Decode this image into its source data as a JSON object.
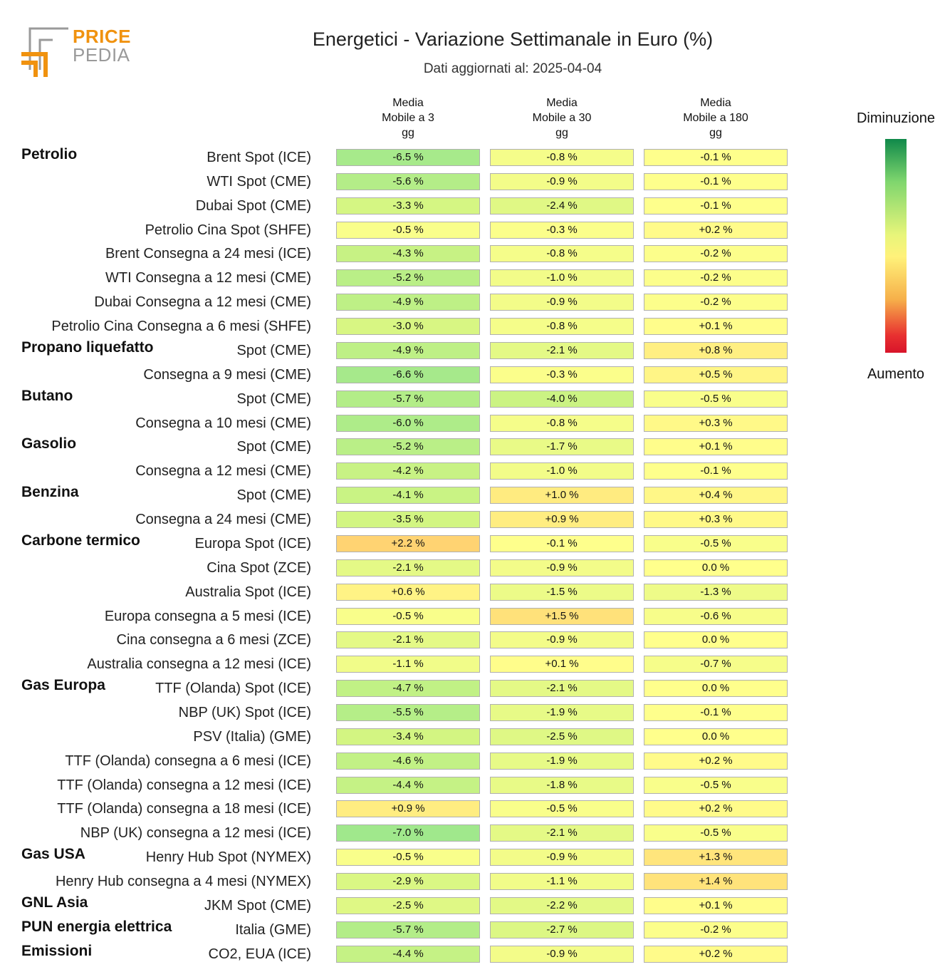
{
  "logo": {
    "line1": "PRICE",
    "line2": "PEDIA"
  },
  "chart_data": {
    "type": "heatmap",
    "title": "Energetici - Variazione Settimanale in Euro (%)",
    "subtitle": "Dati aggiornati al: 2025-04-04",
    "columns": [
      "Media\nMobile a 3\ngg",
      "Media\nMobile a 30\ngg",
      "Media\nMobile a 180\ngg"
    ],
    "legend": {
      "top": "Diminuzione",
      "bottom": "Aumento"
    },
    "rows": [
      {
        "group": "Petrolio",
        "label": "Brent Spot (ICE)",
        "values": [
          -6.5,
          -0.8,
          -0.1
        ],
        "display": [
          "-6.5 %",
          "-0.8 %",
          "-0.1 %"
        ]
      },
      {
        "group": "",
        "label": "WTI Spot (CME)",
        "values": [
          -5.6,
          -0.9,
          -0.1
        ],
        "display": [
          "-5.6 %",
          "-0.9 %",
          "-0.1 %"
        ]
      },
      {
        "group": "",
        "label": "Dubai Spot (CME)",
        "values": [
          -3.3,
          -2.4,
          -0.1
        ],
        "display": [
          "-3.3 %",
          "-2.4 %",
          "-0.1 %"
        ]
      },
      {
        "group": "",
        "label": "Petrolio Cina Spot (SHFE)",
        "values": [
          -0.5,
          -0.3,
          0.2
        ],
        "display": [
          "-0.5 %",
          "-0.3 %",
          "+0.2 %"
        ]
      },
      {
        "group": "",
        "label": "Brent Consegna a 24 mesi (ICE)",
        "values": [
          -4.3,
          -0.8,
          -0.2
        ],
        "display": [
          "-4.3 %",
          "-0.8 %",
          "-0.2 %"
        ]
      },
      {
        "group": "",
        "label": "WTI Consegna a 12 mesi (CME)",
        "values": [
          -5.2,
          -1.0,
          -0.2
        ],
        "display": [
          "-5.2 %",
          "-1.0 %",
          "-0.2 %"
        ]
      },
      {
        "group": "",
        "label": "Dubai Consegna a 12 mesi (CME)",
        "values": [
          -4.9,
          -0.9,
          -0.2
        ],
        "display": [
          "-4.9 %",
          "-0.9 %",
          "-0.2 %"
        ]
      },
      {
        "group": "",
        "label": "Petrolio Cina Consegna a 6 mesi (SHFE)",
        "values": [
          -3.0,
          -0.8,
          0.1
        ],
        "display": [
          "-3.0 %",
          "-0.8 %",
          "+0.1 %"
        ]
      },
      {
        "group": "Propano liquefatto",
        "label": "Spot (CME)",
        "values": [
          -4.9,
          -2.1,
          0.8
        ],
        "display": [
          "-4.9 %",
          "-2.1 %",
          "+0.8 %"
        ]
      },
      {
        "group": "",
        "label": "Consegna a 9 mesi (CME)",
        "values": [
          -6.6,
          -0.3,
          0.5
        ],
        "display": [
          "-6.6 %",
          "-0.3 %",
          "+0.5 %"
        ]
      },
      {
        "group": "Butano",
        "label": "Spot (CME)",
        "values": [
          -5.7,
          -4.0,
          -0.5
        ],
        "display": [
          "-5.7 %",
          "-4.0 %",
          "-0.5 %"
        ]
      },
      {
        "group": "",
        "label": "Consegna a 10 mesi (CME)",
        "values": [
          -6.0,
          -0.8,
          0.3
        ],
        "display": [
          "-6.0 %",
          "-0.8 %",
          "+0.3 %"
        ]
      },
      {
        "group": "Gasolio",
        "label": "Spot (CME)",
        "values": [
          -5.2,
          -1.7,
          0.1
        ],
        "display": [
          "-5.2 %",
          "-1.7 %",
          "+0.1 %"
        ]
      },
      {
        "group": "",
        "label": "Consegna a 12 mesi (CME)",
        "values": [
          -4.2,
          -1.0,
          -0.1
        ],
        "display": [
          "-4.2 %",
          "-1.0 %",
          "-0.1 %"
        ]
      },
      {
        "group": "Benzina",
        "label": "Spot (CME)",
        "values": [
          -4.1,
          1.0,
          0.4
        ],
        "display": [
          "-4.1 %",
          "+1.0 %",
          "+0.4 %"
        ]
      },
      {
        "group": "",
        "label": "Consegna a 24 mesi (CME)",
        "values": [
          -3.5,
          0.9,
          0.3
        ],
        "display": [
          "-3.5 %",
          "+0.9 %",
          "+0.3 %"
        ]
      },
      {
        "group": "Carbone termico",
        "label": "Europa Spot (ICE)",
        "values": [
          2.2,
          -0.1,
          -0.5
        ],
        "display": [
          "+2.2 %",
          "-0.1 %",
          "-0.5 %"
        ]
      },
      {
        "group": "",
        "label": "Cina Spot (ZCE)",
        "values": [
          -2.1,
          -0.9,
          0.0
        ],
        "display": [
          "-2.1 %",
          "-0.9 %",
          "0.0 %"
        ]
      },
      {
        "group": "",
        "label": "Australia Spot (ICE)",
        "values": [
          0.6,
          -1.5,
          -1.3
        ],
        "display": [
          "+0.6 %",
          "-1.5 %",
          "-1.3 %"
        ]
      },
      {
        "group": "",
        "label": "Europa consegna a 5 mesi (ICE)",
        "values": [
          -0.5,
          1.5,
          -0.6
        ],
        "display": [
          "-0.5 %",
          "+1.5 %",
          "-0.6 %"
        ]
      },
      {
        "group": "",
        "label": "Cina consegna a 6 mesi (ZCE)",
        "values": [
          -2.1,
          -0.9,
          0.0
        ],
        "display": [
          "-2.1 %",
          "-0.9 %",
          "0.0 %"
        ]
      },
      {
        "group": "",
        "label": "Australia consegna a 12 mesi (ICE)",
        "values": [
          -1.1,
          0.1,
          -0.7
        ],
        "display": [
          "-1.1 %",
          "+0.1 %",
          "-0.7 %"
        ]
      },
      {
        "group": "Gas Europa",
        "label": "TTF (Olanda) Spot (ICE)",
        "values": [
          -4.7,
          -2.1,
          0.0
        ],
        "display": [
          "-4.7 %",
          "-2.1 %",
          "0.0 %"
        ]
      },
      {
        "group": "",
        "label": "NBP (UK) Spot (ICE)",
        "values": [
          -5.5,
          -1.9,
          -0.1
        ],
        "display": [
          "-5.5 %",
          "-1.9 %",
          "-0.1 %"
        ]
      },
      {
        "group": "",
        "label": "PSV (Italia) (GME)",
        "values": [
          -3.4,
          -2.5,
          0.0
        ],
        "display": [
          "-3.4 %",
          "-2.5 %",
          "0.0 %"
        ]
      },
      {
        "group": "",
        "label": "TTF (Olanda) consegna a 6 mesi (ICE)",
        "values": [
          -4.6,
          -1.9,
          0.2
        ],
        "display": [
          "-4.6 %",
          "-1.9 %",
          "+0.2 %"
        ]
      },
      {
        "group": "",
        "label": "TTF (Olanda) consegna a 12 mesi (ICE)",
        "values": [
          -4.4,
          -1.8,
          -0.5
        ],
        "display": [
          "-4.4 %",
          "-1.8 %",
          "-0.5 %"
        ]
      },
      {
        "group": "",
        "label": "TTF (Olanda) consegna a 18 mesi (ICE)",
        "values": [
          0.9,
          -0.5,
          0.2
        ],
        "display": [
          "+0.9 %",
          "-0.5 %",
          "+0.2 %"
        ]
      },
      {
        "group": "",
        "label": "NBP (UK) consegna a 12 mesi (ICE)",
        "values": [
          -7.0,
          -2.1,
          -0.5
        ],
        "display": [
          "-7.0 %",
          "-2.1 %",
          "-0.5 %"
        ]
      },
      {
        "group": "Gas USA",
        "label": "Henry Hub Spot (NYMEX)",
        "values": [
          -0.5,
          -0.9,
          1.3
        ],
        "display": [
          "-0.5 %",
          "-0.9 %",
          "+1.3 %"
        ]
      },
      {
        "group": "",
        "label": "Henry Hub consegna a 4 mesi (NYMEX)",
        "values": [
          -2.9,
          -1.1,
          1.4
        ],
        "display": [
          "-2.9 %",
          "-1.1 %",
          "+1.4 %"
        ]
      },
      {
        "group": "GNL Asia",
        "label": "JKM Spot (CME)",
        "values": [
          -2.5,
          -2.2,
          0.1
        ],
        "display": [
          "-2.5 %",
          "-2.2 %",
          "+0.1 %"
        ]
      },
      {
        "group": "PUN energia elettrica",
        "label": "Italia (GME)",
        "values": [
          -5.7,
          -2.7,
          -0.2
        ],
        "display": [
          "-5.7 %",
          "-2.7 %",
          "-0.2 %"
        ]
      },
      {
        "group": "Emissioni",
        "label": "CO2, EUA (ICE)",
        "values": [
          -4.4,
          -0.9,
          0.2
        ],
        "display": [
          "-4.4 %",
          "-0.9 %",
          "+0.2 %"
        ]
      }
    ]
  }
}
